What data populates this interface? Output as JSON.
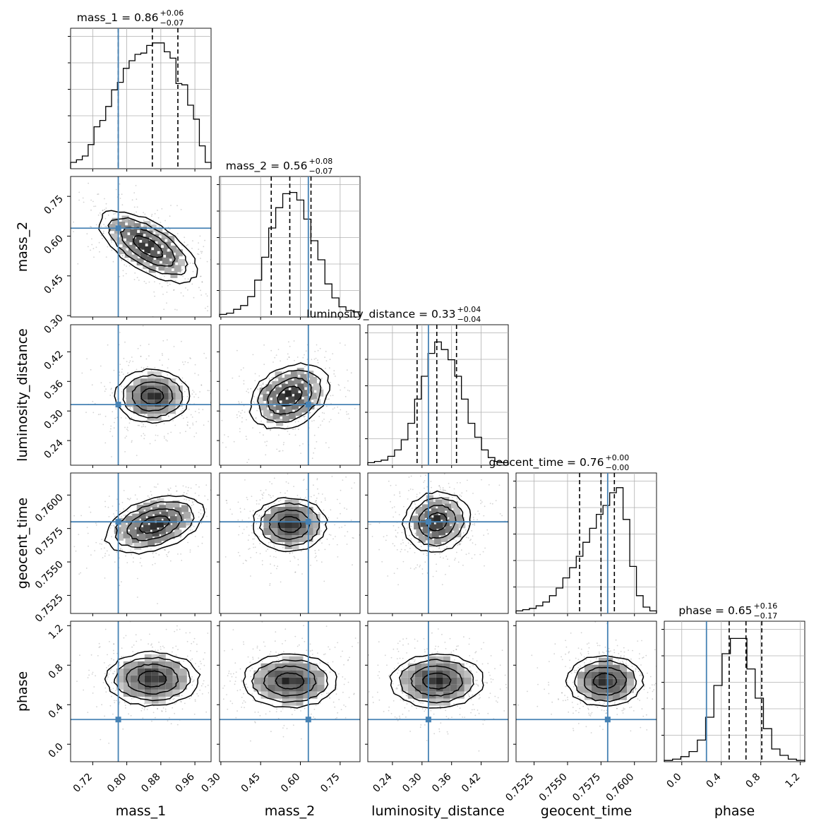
{
  "chart_data": {
    "type": "corner",
    "parameters": [
      {
        "name": "mass_1",
        "label": "mass_1",
        "range": [
          0.668,
          0.998
        ],
        "ticks": [
          "0.72",
          "0.80",
          "0.88",
          "0.96"
        ],
        "tick_values": [
          0.72,
          0.8,
          0.88,
          0.96
        ],
        "truth": 0.78,
        "quantiles": [
          0.78,
          0.86,
          0.92
        ],
        "title_main": "mass_1 = 0.86",
        "title_up": "+0.06",
        "title_down": "−0.07"
      },
      {
        "name": "mass_2",
        "label": "mass_2",
        "range": [
          0.295,
          0.825
        ],
        "ticks": [
          "0.30",
          "0.45",
          "0.60",
          "0.75"
        ],
        "tick_values": [
          0.3,
          0.45,
          0.6,
          0.75
        ],
        "truth": 0.63,
        "quantiles": [
          0.49,
          0.56,
          0.64
        ],
        "title_main": "mass_2 = 0.56",
        "title_up": "+0.08",
        "title_down": "−0.07"
      },
      {
        "name": "luminosity_distance",
        "label": "luminosity_distance",
        "range": [
          0.19,
          0.475
        ],
        "ticks": [
          "0.24",
          "0.30",
          "0.36",
          "0.42"
        ],
        "tick_values": [
          0.24,
          0.3,
          0.36,
          0.42
        ],
        "truth": 0.313,
        "quantiles": [
          0.29,
          0.33,
          0.37
        ],
        "title_main": "luminosity_distance = 0.33",
        "title_up": "+0.04",
        "title_down": "−0.04"
      },
      {
        "name": "geocent_time",
        "label": "geocent_time",
        "range": [
          0.75115,
          0.76165
        ],
        "ticks": [
          "0.7525",
          "0.7550",
          "0.7575",
          "0.7600"
        ],
        "tick_values": [
          0.7525,
          0.755,
          0.7575,
          0.76
        ],
        "truth": 0.758,
        "quantiles": [
          0.7559,
          0.7575,
          0.7585
        ],
        "title_main": "geocent_time = 0.76",
        "title_up": "+0.00",
        "title_down": "−0.00"
      },
      {
        "name": "phase",
        "label": "phase",
        "range": [
          -0.177,
          1.245
        ],
        "ticks": [
          "0.0",
          "0.4",
          "0.8",
          "1.2"
        ],
        "tick_values": [
          0.0,
          0.4,
          0.8,
          1.2
        ],
        "truth": 0.25,
        "quantiles": [
          0.48,
          0.65,
          0.81
        ],
        "title_main": "phase = 0.65",
        "title_up": "+0.16",
        "title_down": "−0.17"
      }
    ],
    "histograms": [
      {
        "param": "mass_1",
        "counts": [
          0.05,
          0.07,
          0.1,
          0.19,
          0.33,
          0.38,
          0.49,
          0.62,
          0.68,
          0.79,
          0.85,
          0.9,
          0.91,
          0.97,
          0.99,
          0.99,
          0.92,
          0.87,
          0.67,
          0.66,
          0.5,
          0.39,
          0.18,
          0.05
        ]
      },
      {
        "param": "mass_2",
        "counts": [
          0.02,
          0.03,
          0.06,
          0.09,
          0.16,
          0.29,
          0.47,
          0.7,
          0.86,
          0.97,
          0.98,
          0.92,
          0.77,
          0.6,
          0.45,
          0.26,
          0.15,
          0.08,
          0.05,
          0.04
        ]
      },
      {
        "param": "luminosity_distance",
        "counts": [
          0.02,
          0.03,
          0.04,
          0.07,
          0.12,
          0.2,
          0.33,
          0.52,
          0.7,
          0.88,
          0.97,
          0.91,
          0.83,
          0.7,
          0.52,
          0.33,
          0.22,
          0.12,
          0.06,
          0.03,
          0.02
        ]
      },
      {
        "param": "geocent_time",
        "counts": [
          0.02,
          0.03,
          0.04,
          0.06,
          0.09,
          0.14,
          0.2,
          0.28,
          0.36,
          0.45,
          0.56,
          0.67,
          0.78,
          0.85,
          0.95,
          0.99,
          0.74,
          0.37,
          0.14,
          0.05,
          0.02
        ]
      },
      {
        "param": "phase",
        "counts": [
          0.01,
          0.02,
          0.04,
          0.08,
          0.17,
          0.35,
          0.6,
          0.85,
          0.97,
          0.97,
          0.73,
          0.5,
          0.26,
          0.1,
          0.05,
          0.02,
          0.01
        ]
      }
    ],
    "pair_means": {
      "mass_1|mass_2": [
        0.85,
        0.56
      ],
      "mass_1|luminosity_distance": [
        0.86,
        0.33
      ],
      "mass_2|luminosity_distance": [
        0.56,
        0.33
      ],
      "mass_1|geocent_time": [
        0.865,
        0.7578
      ],
      "mass_2|geocent_time": [
        0.56,
        0.7578
      ],
      "luminosity_distance|geocent_time": [
        0.33,
        0.758
      ],
      "mass_1|phase": [
        0.86,
        0.66
      ],
      "mass_2|phase": [
        0.56,
        0.64
      ],
      "luminosity_distance|phase": [
        0.33,
        0.64
      ],
      "geocent_time|phase": [
        0.7578,
        0.64
      ]
    },
    "truth_color": "#4682b4",
    "contour_color": "#000000",
    "scatter_color": "#808080",
    "quantile_line_style": "dashed",
    "grid": true,
    "legend": "none"
  }
}
